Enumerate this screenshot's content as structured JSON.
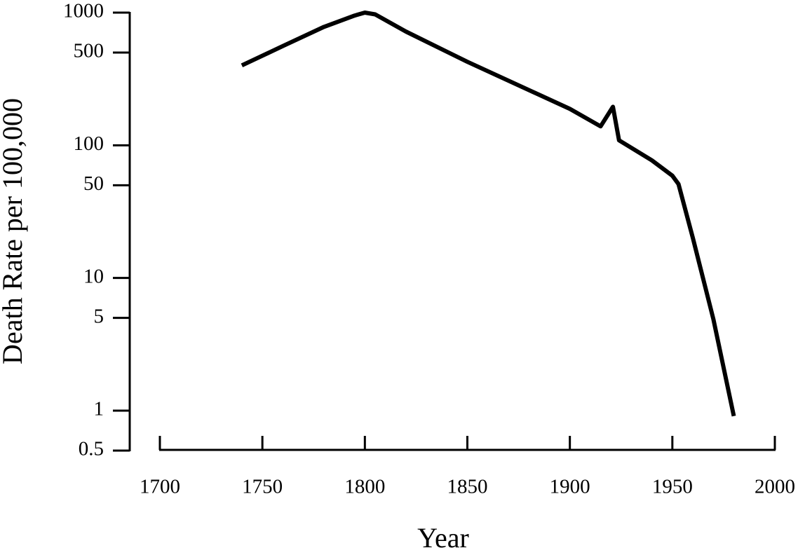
{
  "chart_data": {
    "type": "line",
    "x_label": "Year",
    "y_label": "Death Rate per 100,000",
    "x": [
      1740,
      1760,
      1780,
      1795,
      1800,
      1805,
      1820,
      1850,
      1900,
      1915,
      1921,
      1924,
      1940,
      1950,
      1953,
      1960,
      1970,
      1980
    ],
    "values": [
      400,
      560,
      780,
      950,
      1000,
      970,
      720,
      426,
      188,
      139,
      195,
      109,
      77,
      59,
      51,
      20,
      4.9,
      0.91
    ],
    "color": "#000000",
    "xlim": [
      1700,
      2000
    ],
    "xticks": [
      1700,
      1750,
      1800,
      1850,
      1900,
      1950,
      2000
    ],
    "ylim": [
      0.5,
      1000
    ],
    "yticks": [
      0.5,
      1,
      5,
      10,
      50,
      100,
      500,
      1000
    ],
    "y_log": true,
    "grid": false
  }
}
